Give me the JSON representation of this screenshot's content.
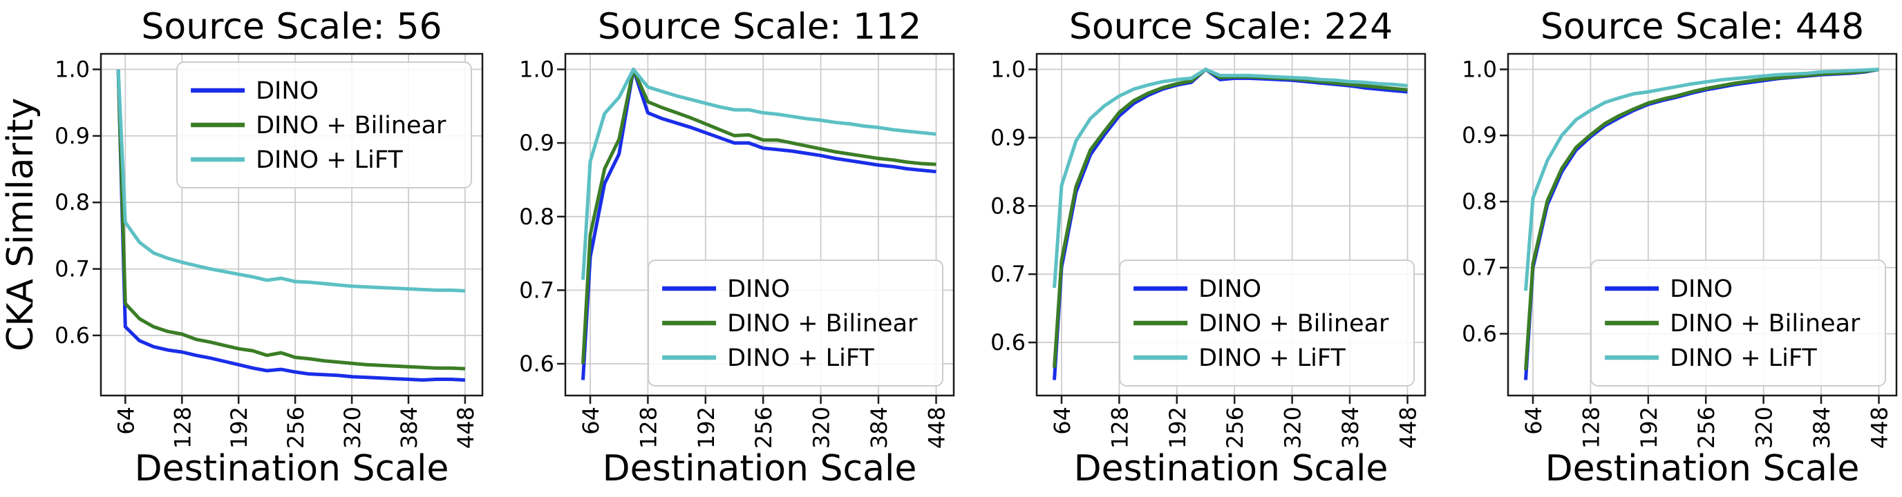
{
  "figure": {
    "ylabel": "CKA Similarity",
    "xlabel": "Destination Scale",
    "background": "#ffffff",
    "grid_color": "#cccccc",
    "spine_color": "#1a1a1a",
    "legend_border": "#cccccc",
    "series_colors": {
      "DINO": "#1a2de8",
      "DINO + Bilinear": "#3b7d26",
      "DINO + LiFT": "#5cc0c4"
    }
  },
  "chart_data": [
    {
      "type": "line",
      "title": "Source Scale: 56",
      "xlabel": "Destination Scale",
      "ylabel": "CKA Similarity",
      "grid": true,
      "legend_position": "upper-right",
      "xticks": [
        64,
        128,
        192,
        256,
        320,
        384,
        448
      ],
      "yticks": [
        0.6,
        0.7,
        0.8,
        0.9,
        1.0
      ],
      "xlim": [
        36,
        468
      ],
      "x": [
        56,
        64,
        80,
        96,
        112,
        128,
        144,
        160,
        176,
        192,
        208,
        224,
        240,
        256,
        272,
        288,
        304,
        320,
        336,
        352,
        368,
        384,
        400,
        416,
        432,
        448
      ],
      "series": [
        {
          "name": "DINO",
          "color": "#1a2de8",
          "values": [
            1.0,
            0.613,
            0.592,
            0.583,
            0.578,
            0.575,
            0.57,
            0.566,
            0.561,
            0.556,
            0.551,
            0.547,
            0.549,
            0.545,
            0.542,
            0.541,
            0.54,
            0.538,
            0.537,
            0.536,
            0.535,
            0.534,
            0.533,
            0.534,
            0.534,
            0.533
          ]
        },
        {
          "name": "DINO + Bilinear",
          "color": "#3b7d26",
          "values": [
            1.0,
            0.648,
            0.625,
            0.613,
            0.606,
            0.602,
            0.594,
            0.59,
            0.585,
            0.58,
            0.577,
            0.57,
            0.574,
            0.567,
            0.565,
            0.562,
            0.56,
            0.558,
            0.556,
            0.555,
            0.554,
            0.553,
            0.552,
            0.551,
            0.551,
            0.55
          ]
        },
        {
          "name": "DINO + LiFT",
          "color": "#5cc0c4",
          "values": [
            1.0,
            0.77,
            0.74,
            0.724,
            0.716,
            0.71,
            0.705,
            0.7,
            0.696,
            0.692,
            0.688,
            0.683,
            0.686,
            0.681,
            0.68,
            0.678,
            0.676,
            0.674,
            0.673,
            0.672,
            0.671,
            0.67,
            0.669,
            0.668,
            0.668,
            0.667
          ]
        }
      ]
    },
    {
      "type": "line",
      "title": "Source Scale: 112",
      "xlabel": "Destination Scale",
      "ylabel": "",
      "grid": true,
      "legend_position": "lower-right",
      "xticks": [
        64,
        128,
        192,
        256,
        320,
        384,
        448
      ],
      "yticks": [
        0.6,
        0.7,
        0.8,
        0.9,
        1.0
      ],
      "xlim": [
        36,
        468
      ],
      "x": [
        56,
        64,
        80,
        96,
        112,
        128,
        144,
        160,
        176,
        192,
        208,
        224,
        240,
        256,
        272,
        288,
        304,
        320,
        336,
        352,
        368,
        384,
        400,
        416,
        432,
        448
      ],
      "series": [
        {
          "name": "DINO",
          "color": "#1a2de8",
          "values": [
            0.578,
            0.745,
            0.845,
            0.885,
            1.0,
            0.941,
            0.933,
            0.927,
            0.921,
            0.914,
            0.907,
            0.9,
            0.9,
            0.893,
            0.891,
            0.889,
            0.886,
            0.883,
            0.879,
            0.876,
            0.873,
            0.87,
            0.868,
            0.865,
            0.863,
            0.861
          ]
        },
        {
          "name": "DINO + Bilinear",
          "color": "#3b7d26",
          "values": [
            0.6,
            0.775,
            0.865,
            0.905,
            1.0,
            0.956,
            0.948,
            0.941,
            0.934,
            0.926,
            0.918,
            0.91,
            0.911,
            0.904,
            0.904,
            0.9,
            0.896,
            0.892,
            0.888,
            0.885,
            0.882,
            0.879,
            0.877,
            0.874,
            0.872,
            0.871
          ]
        },
        {
          "name": "DINO + LiFT",
          "color": "#5cc0c4",
          "values": [
            0.714,
            0.875,
            0.94,
            0.962,
            1.0,
            0.976,
            0.97,
            0.964,
            0.959,
            0.954,
            0.949,
            0.945,
            0.945,
            0.941,
            0.939,
            0.936,
            0.933,
            0.931,
            0.928,
            0.926,
            0.923,
            0.921,
            0.918,
            0.916,
            0.914,
            0.912
          ]
        }
      ]
    },
    {
      "type": "line",
      "title": "Source Scale: 224",
      "xlabel": "Destination Scale",
      "ylabel": "",
      "grid": true,
      "legend_position": "lower-right",
      "xticks": [
        64,
        128,
        192,
        256,
        320,
        384,
        448
      ],
      "yticks": [
        0.6,
        0.7,
        0.8,
        0.9,
        1.0
      ],
      "xlim": [
        36,
        468
      ],
      "x": [
        56,
        64,
        80,
        96,
        112,
        128,
        144,
        160,
        176,
        192,
        208,
        224,
        240,
        256,
        272,
        288,
        304,
        320,
        336,
        352,
        368,
        384,
        400,
        416,
        432,
        448
      ],
      "series": [
        {
          "name": "DINO",
          "color": "#1a2de8",
          "values": [
            0.545,
            0.71,
            0.82,
            0.875,
            0.905,
            0.932,
            0.95,
            0.962,
            0.971,
            0.977,
            0.981,
            1.0,
            0.985,
            0.987,
            0.987,
            0.986,
            0.985,
            0.984,
            0.982,
            0.98,
            0.978,
            0.976,
            0.973,
            0.971,
            0.969,
            0.967
          ]
        },
        {
          "name": "DINO + Bilinear",
          "color": "#3b7d26",
          "values": [
            0.563,
            0.72,
            0.828,
            0.882,
            0.91,
            0.937,
            0.954,
            0.965,
            0.973,
            0.979,
            0.983,
            1.0,
            0.988,
            0.989,
            0.989,
            0.988,
            0.987,
            0.986,
            0.984,
            0.982,
            0.98,
            0.978,
            0.976,
            0.974,
            0.972,
            0.97
          ]
        },
        {
          "name": "DINO + LiFT",
          "color": "#5cc0c4",
          "values": [
            0.68,
            0.83,
            0.895,
            0.928,
            0.947,
            0.961,
            0.971,
            0.977,
            0.982,
            0.985,
            0.987,
            1.0,
            0.991,
            0.991,
            0.991,
            0.99,
            0.989,
            0.988,
            0.987,
            0.985,
            0.984,
            0.982,
            0.981,
            0.979,
            0.978,
            0.976
          ]
        }
      ]
    },
    {
      "type": "line",
      "title": "Source Scale: 448",
      "xlabel": "Destination Scale",
      "ylabel": "",
      "grid": true,
      "legend_position": "lower-right",
      "xticks": [
        64,
        128,
        192,
        256,
        320,
        384,
        448
      ],
      "yticks": [
        0.6,
        0.7,
        0.8,
        0.9,
        1.0
      ],
      "xlim": [
        36,
        468
      ],
      "x": [
        56,
        64,
        80,
        96,
        112,
        128,
        144,
        160,
        176,
        192,
        208,
        224,
        240,
        256,
        272,
        288,
        304,
        320,
        336,
        352,
        368,
        384,
        400,
        416,
        432,
        448
      ],
      "series": [
        {
          "name": "DINO",
          "color": "#1a2de8",
          "values": [
            0.53,
            0.7,
            0.795,
            0.845,
            0.878,
            0.898,
            0.915,
            0.927,
            0.938,
            0.947,
            0.953,
            0.958,
            0.964,
            0.969,
            0.973,
            0.977,
            0.98,
            0.983,
            0.986,
            0.988,
            0.99,
            0.992,
            0.993,
            0.994,
            0.996,
            1.0
          ]
        },
        {
          "name": "DINO + Bilinear",
          "color": "#3b7d26",
          "values": [
            0.545,
            0.706,
            0.801,
            0.85,
            0.882,
            0.901,
            0.918,
            0.93,
            0.94,
            0.949,
            0.955,
            0.96,
            0.966,
            0.971,
            0.975,
            0.979,
            0.982,
            0.985,
            0.987,
            0.989,
            0.991,
            0.993,
            0.994,
            0.995,
            0.997,
            1.0
          ]
        },
        {
          "name": "DINO + LiFT",
          "color": "#5cc0c4",
          "values": [
            0.665,
            0.805,
            0.862,
            0.9,
            0.924,
            0.938,
            0.95,
            0.957,
            0.963,
            0.966,
            0.97,
            0.974,
            0.978,
            0.981,
            0.984,
            0.986,
            0.988,
            0.99,
            0.992,
            0.993,
            0.994,
            0.996,
            0.997,
            0.998,
            0.999,
            1.0
          ]
        }
      ]
    }
  ]
}
